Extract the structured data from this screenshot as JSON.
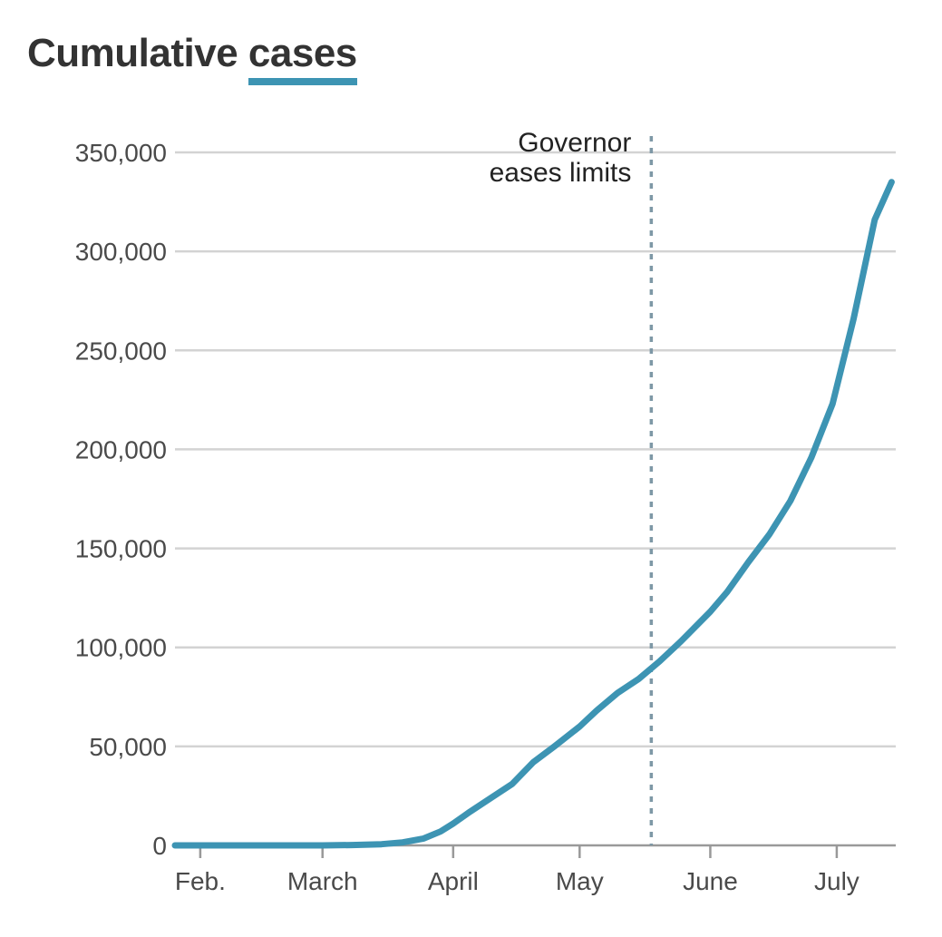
{
  "title_main": "Cumulative",
  "title_highlight": "cases",
  "colors": {
    "series": "#3d94b3",
    "grid": "#d3d3d3",
    "axis": "#999999",
    "annotation_line": "#7e98a6"
  },
  "chart_data": {
    "type": "line",
    "title": "Cumulative cases",
    "x_range": [
      "2020-01-26",
      "2020-07-15"
    ],
    "ylim": [
      0,
      350000
    ],
    "yticks": [
      0,
      50000,
      100000,
      150000,
      200000,
      250000,
      300000,
      350000
    ],
    "ytick_labels": [
      "0",
      "50,000",
      "100,000",
      "150,000",
      "200,000",
      "250,000",
      "300,000",
      "350,000"
    ],
    "xticks": [
      "2020-02-01",
      "2020-03-01",
      "2020-04-01",
      "2020-05-01",
      "2020-06-01",
      "2020-07-01"
    ],
    "xtick_labels": [
      "Feb.",
      "March",
      "April",
      "May",
      "June",
      "July"
    ],
    "grid": true,
    "annotation": {
      "date": "2020-05-18",
      "lines": [
        "Governor",
        "eases limits"
      ]
    },
    "series": [
      {
        "x": [
          "2020-01-26",
          "2020-02-15",
          "2020-03-01",
          "2020-03-08",
          "2020-03-15",
          "2020-03-20",
          "2020-03-25",
          "2020-03-29",
          "2020-04-01",
          "2020-04-05",
          "2020-04-10",
          "2020-04-15",
          "2020-04-20",
          "2020-04-25",
          "2020-05-01",
          "2020-05-05",
          "2020-05-10",
          "2020-05-15",
          "2020-05-20",
          "2020-05-25",
          "2020-06-01",
          "2020-06-05",
          "2020-06-10",
          "2020-06-15",
          "2020-06-20",
          "2020-06-25",
          "2020-06-30",
          "2020-07-05",
          "2020-07-10",
          "2020-07-14"
        ],
        "y": [
          0,
          0,
          0,
          200,
          600,
          1500,
          3500,
          7000,
          11000,
          17000,
          24000,
          31000,
          42000,
          50000,
          60000,
          68000,
          77000,
          84000,
          93000,
          103000,
          118000,
          128000,
          143000,
          157000,
          174000,
          196000,
          223000,
          266000,
          316000,
          335000
        ]
      }
    ]
  }
}
